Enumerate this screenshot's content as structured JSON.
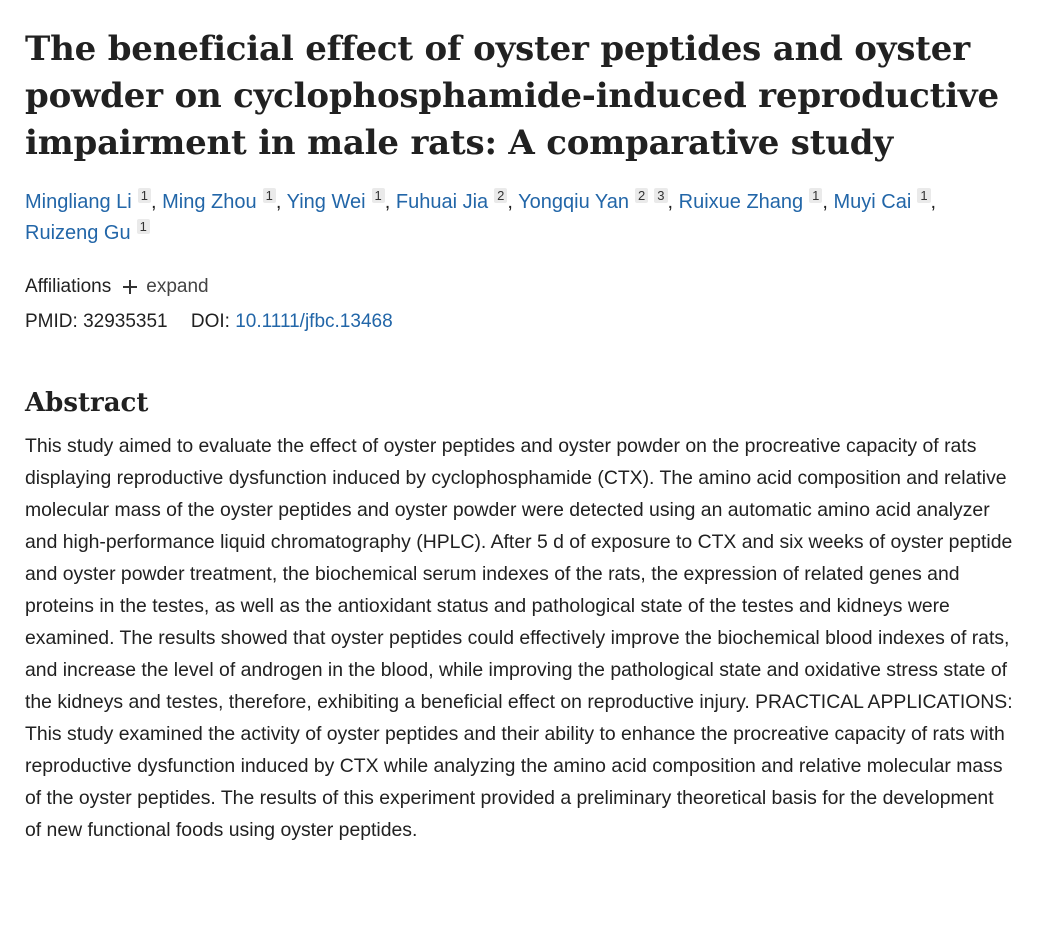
{
  "article": {
    "title": "The beneficial effect of oyster peptides and oyster powder on cyclophosphamide-induced reproductive impairment in male rats: A comparative study",
    "authors": [
      {
        "name": "Mingliang Li",
        "affils": [
          "1"
        ]
      },
      {
        "name": "Ming Zhou",
        "affils": [
          "1"
        ]
      },
      {
        "name": "Ying Wei",
        "affils": [
          "1"
        ]
      },
      {
        "name": "Fuhuai Jia",
        "affils": [
          "2"
        ]
      },
      {
        "name": "Yongqiu Yan",
        "affils": [
          "2",
          "3"
        ]
      },
      {
        "name": "Ruixue Zhang",
        "affils": [
          "1"
        ]
      },
      {
        "name": "Muyi Cai",
        "affils": [
          "1"
        ]
      },
      {
        "name": "Ruizeng Gu",
        "affils": [
          "1"
        ]
      }
    ],
    "affiliations_label": "Affiliations",
    "expand_label": "expand",
    "pmid_label": "PMID:",
    "pmid": "32935351",
    "doi_label": "DOI:",
    "doi": "10.1111/jfbc.13468",
    "abstract_heading": "Abstract",
    "abstract": "This study aimed to evaluate the effect of oyster peptides and oyster powder on the procreative capacity of rats displaying reproductive dysfunction induced by cyclophosphamide (CTX). The amino acid composition and relative molecular mass of the oyster peptides and oyster powder were detected using an automatic amino acid analyzer and high-performance liquid chromatography (HPLC). After 5 d of exposure to CTX and six weeks of oyster peptide and oyster powder treatment, the biochemical serum indexes of the rats, the expression of related genes and proteins in the testes, as well as the antioxidant status and pathological state of the testes and kidneys were examined. The results showed that oyster peptides could effectively improve the biochemical blood indexes of rats, and increase the level of androgen in the blood, while improving the pathological state and oxidative stress state of the kidneys and testes, therefore, exhibiting a beneficial effect on reproductive injury. PRACTICAL APPLICATIONS: This study examined the activity of oyster peptides and their ability to enhance the procreative capacity of rats with reproductive dysfunction induced by CTX while analyzing the amino acid composition and relative molecular mass of the oyster peptides. The results of this experiment provided a preliminary theoretical basis for the development of new functional foods using oyster peptides."
  },
  "colors": {
    "link": "#2266a8",
    "text": "#212121",
    "affil_badge_bg": "#eaeaea"
  }
}
